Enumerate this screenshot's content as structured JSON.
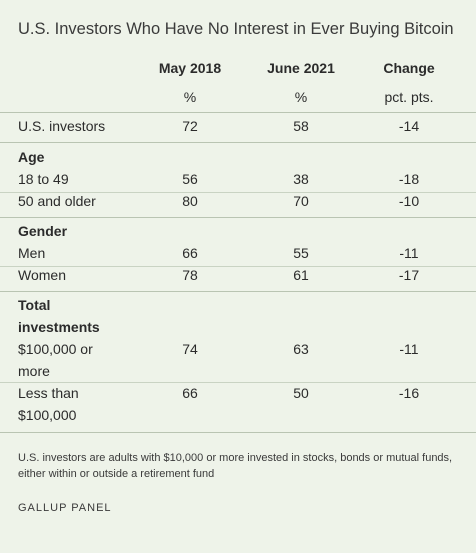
{
  "title": "U.S. Investors Who Have No Interest in Ever Buying Bitcoin",
  "chart_data": {
    "type": "table",
    "columns": [
      "May 2018",
      "June 2021",
      "Change"
    ],
    "units": [
      "%",
      "%",
      "pct. pts."
    ],
    "rows": [
      {
        "label": "U.S. investors",
        "values": [
          "72",
          "58",
          "-14"
        ]
      },
      {
        "section": "Age"
      },
      {
        "label": "18 to 49",
        "values": [
          "56",
          "38",
          "-18"
        ]
      },
      {
        "label": "50 and older",
        "values": [
          "80",
          "70",
          "-10"
        ]
      },
      {
        "section": "Gender"
      },
      {
        "label": "Men",
        "values": [
          "66",
          "55",
          "-11"
        ]
      },
      {
        "label": "Women",
        "values": [
          "78",
          "61",
          "-17"
        ]
      },
      {
        "section_lines": [
          "Total",
          "investments"
        ]
      },
      {
        "label_lines": [
          "$100,000 or",
          "more"
        ],
        "values": [
          "74",
          "63",
          "-11"
        ]
      },
      {
        "label_lines": [
          "Less than",
          "$100,000"
        ],
        "values": [
          "66",
          "50",
          "-16"
        ]
      }
    ]
  },
  "note": "U.S. investors are adults with $10,000 or more invested in stocks, bonds or mutual funds, either within or outside a retirement fund",
  "source": "GALLUP PANEL"
}
